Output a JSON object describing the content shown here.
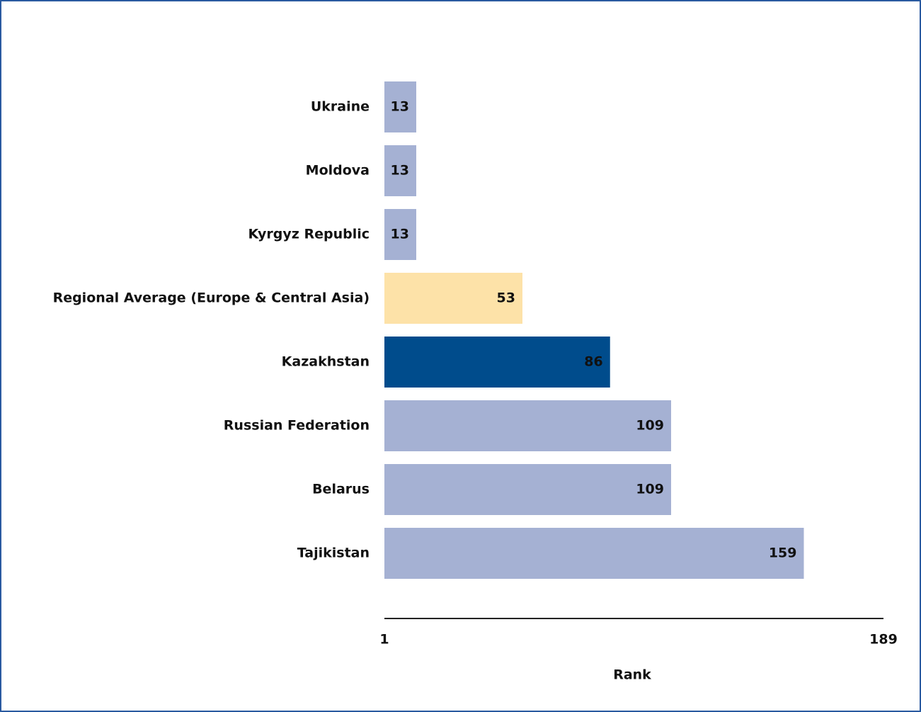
{
  "chart_data": {
    "type": "barh",
    "categories": [
      "Ukraine",
      "Moldova",
      "Kyrgyz Republic",
      "Regional Average (Europe & Central Asia)",
      "Kazakhstan",
      "Russian Federation",
      "Belarus",
      "Tajikistan"
    ],
    "values": [
      13,
      13,
      13,
      53,
      86,
      109,
      109,
      159
    ],
    "colors": [
      "#a5b1d3",
      "#a5b1d3",
      "#a5b1d3",
      "#fde2a8",
      "#004c8c",
      "#a5b1d3",
      "#a5b1d3",
      "#a5b1d3"
    ],
    "xlim": [
      1,
      189
    ],
    "xticks": [
      1,
      189
    ],
    "xlabel": "Rank"
  }
}
